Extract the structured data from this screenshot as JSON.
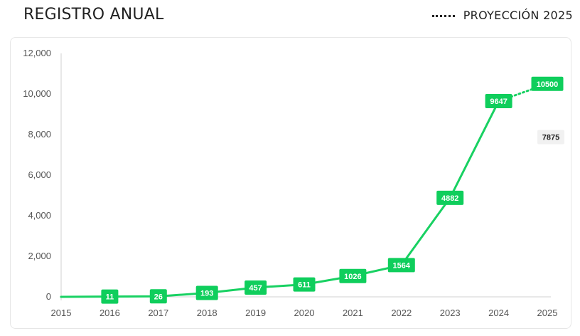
{
  "header": {
    "title": "REGISTRO ANUAL",
    "legend_label": "PROYECCIÓN 2025"
  },
  "colors": {
    "line": "#18d162",
    "label_bg": "#0fce5c",
    "annotation_bg": "#f1f1f1"
  },
  "chart_data": {
    "type": "line",
    "title": "REGISTRO ANUAL",
    "xlabel": "",
    "ylabel": "",
    "x": [
      "2015",
      "2016",
      "2017",
      "2018",
      "2019",
      "2020",
      "2021",
      "2022",
      "2023",
      "2024",
      "2025"
    ],
    "ylim": [
      0,
      12000
    ],
    "y_ticks": [
      "0",
      "2,000",
      "4,000",
      "6,000",
      "8,000",
      "10,000",
      "12,000"
    ],
    "grid": false,
    "legend_position": "top-right",
    "series": [
      {
        "values": [
          0,
          11,
          26,
          193,
          457,
          611,
          1026,
          1564,
          4882,
          9647,
          null
        ],
        "style": "solid",
        "labels": [
          "",
          "11",
          "26",
          "193",
          "457",
          "611",
          "1026",
          "1564",
          "4882",
          "9647",
          ""
        ]
      },
      {
        "name": "PROYECCIÓN 2025",
        "values": [
          null,
          null,
          null,
          null,
          null,
          null,
          null,
          null,
          null,
          9647,
          10500
        ],
        "style": "dotted",
        "labels": [
          "",
          "",
          "",
          "",
          "",
          "",
          "",
          "",
          "",
          "",
          "10500"
        ]
      }
    ],
    "annotations": [
      {
        "x": "2025",
        "y": 7875,
        "text": "7875"
      }
    ]
  }
}
